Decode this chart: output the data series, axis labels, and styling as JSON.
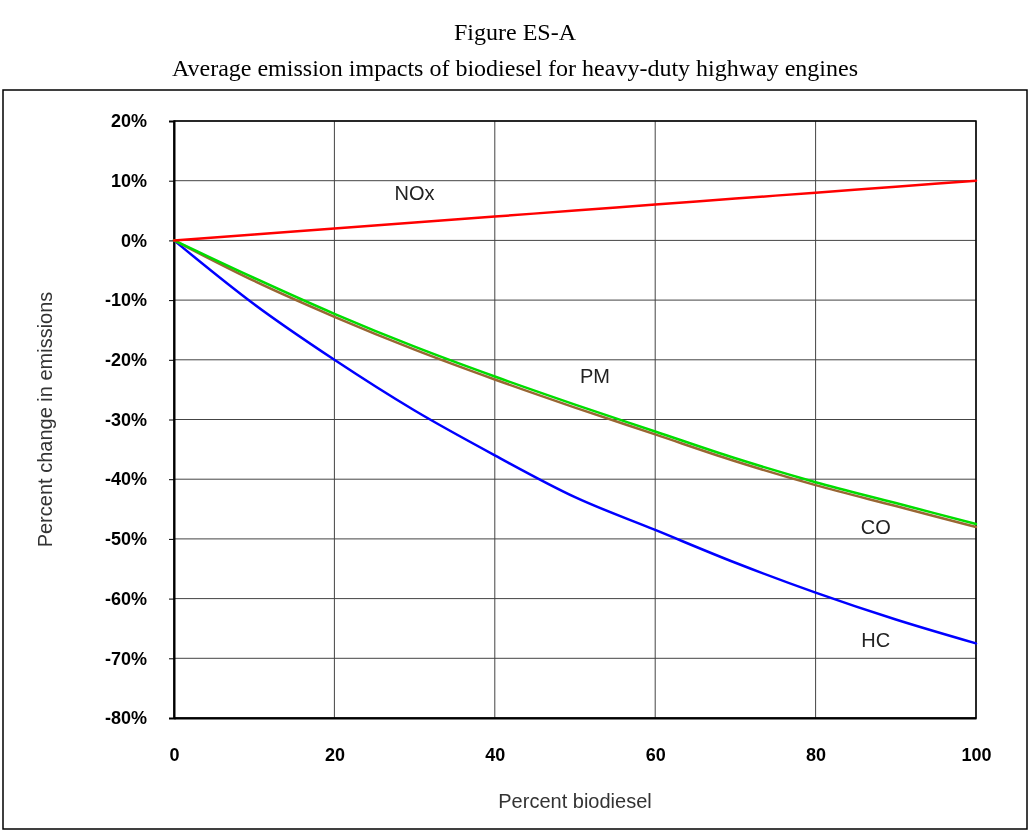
{
  "chart_data": {
    "type": "line",
    "title": "Figure ES-A",
    "subtitle": "Average emission impacts of biodiesel for heavy-duty highway engines",
    "xlabel": "Percent biodiesel",
    "ylabel": "Percent change in emissions",
    "x": [
      0,
      10,
      20,
      30,
      40,
      50,
      60,
      70,
      80,
      90,
      100
    ],
    "series": [
      {
        "name": "HC",
        "color": "#0000ff",
        "values": [
          0,
          -10.7,
          -20,
          -28.5,
          -36,
          -43,
          -48.5,
          -54,
          -59,
          -63.5,
          -67.5
        ]
      },
      {
        "name": "CO",
        "color": "#996633",
        "values": [
          0,
          -6.8,
          -12.8,
          -18.3,
          -23.3,
          -28,
          -32.5,
          -37,
          -41,
          -44.5,
          -48
        ]
      },
      {
        "name": "PM",
        "color": "#00dd00",
        "values": [
          0,
          -6.3,
          -12.3,
          -17.8,
          -22.8,
          -27.5,
          -32,
          -36.5,
          -40.5,
          -44,
          -47.5
        ]
      },
      {
        "name": "NOx",
        "color": "#ff0000",
        "values": [
          0,
          1,
          2,
          3,
          4,
          5,
          6,
          7,
          8,
          9,
          10
        ]
      }
    ],
    "xlim": [
      0,
      100
    ],
    "xticks": [
      0,
      20,
      40,
      60,
      80,
      100
    ],
    "ylim": [
      -80,
      20
    ],
    "yticks": [
      {
        "value": -80,
        "label": "-80%"
      },
      {
        "value": -70,
        "label": "-70%"
      },
      {
        "value": -60,
        "label": "-60%"
      },
      {
        "value": -50,
        "label": "-50%"
      },
      {
        "value": -40,
        "label": "-40%"
      },
      {
        "value": -30,
        "label": "-30%"
      },
      {
        "value": -20,
        "label": "-20%"
      },
      {
        "value": -10,
        "label": "-10%"
      },
      {
        "value": 0,
        "label": "0%"
      },
      {
        "value": 10,
        "label": "10%"
      },
      {
        "value": 20,
        "label": "20%"
      }
    ],
    "grid": true,
    "legend": false,
    "marker": "none",
    "line_style": "solid"
  }
}
